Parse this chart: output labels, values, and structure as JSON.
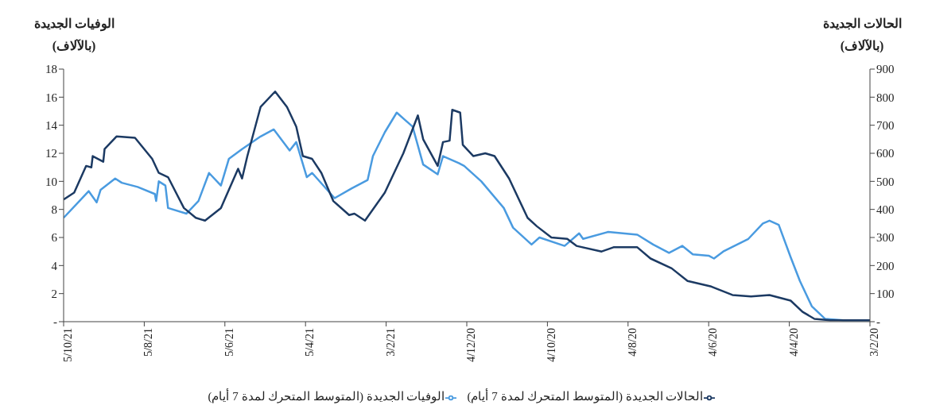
{
  "chart_data": {
    "type": "line",
    "ylabel": "الوفيات الجديدة (بالآلاف)",
    "y2label": "الحالات الجديدة (بالآلاف)",
    "xlim": [
      "2021-10-05",
      "2020-02-03"
    ],
    "xticks": [
      {
        "value": "2021-10-05",
        "label": "5/10/21"
      },
      {
        "value": "2021-08-05",
        "label": "5/8/21"
      },
      {
        "value": "2021-06-05",
        "label": "5/6/21"
      },
      {
        "value": "2021-04-05",
        "label": "5/4/21"
      },
      {
        "value": "2021-02-03",
        "label": "3/2/21"
      },
      {
        "value": "2020-12-04",
        "label": "4/12/20"
      },
      {
        "value": "2020-10-04",
        "label": "4/10/20"
      },
      {
        "value": "2020-08-04",
        "label": "4/8/20"
      },
      {
        "value": "2020-06-04",
        "label": "4/6/20"
      },
      {
        "value": "2020-04-04",
        "label": "4/4/20"
      },
      {
        "value": "2020-02-03",
        "label": "3/2/20"
      }
    ],
    "ylim": [
      0,
      18
    ],
    "yticks": [
      {
        "value": 0,
        "label": "-"
      },
      2,
      4,
      6,
      8,
      10,
      12,
      14,
      16,
      18
    ],
    "y2lim": [
      0,
      900
    ],
    "y2ticks": [
      {
        "value": 0,
        "label": "-"
      },
      100,
      200,
      300,
      400,
      500,
      600,
      700,
      800,
      900
    ],
    "grid": false,
    "legend": "bottom",
    "marker": "none",
    "line_style": "solid",
    "series": [
      {
        "name": "الوفيات الجديدة (المتوسط المتحرك لمدة 7 أيام)",
        "color": "#4a9be0",
        "x": [
          "2021-10-05",
          "2021-09-16",
          "2021-09-10",
          "2021-09-07",
          "2021-08-27",
          "2021-08-22",
          "2021-08-10",
          "2021-07-28",
          "2021-07-27",
          "2021-07-25",
          "2021-07-20",
          "2021-07-18",
          "2021-07-04",
          "2021-06-25",
          "2021-06-17",
          "2021-06-08",
          "2021-06-02",
          "2021-05-23",
          "2021-05-09",
          "2021-04-29",
          "2021-04-17",
          "2021-04-12",
          "2021-04-04",
          "2021-03-31",
          "2021-03-14",
          "2021-03-01",
          "2021-02-17",
          "2021-02-13",
          "2021-02-04",
          "2021-01-26",
          "2021-01-14",
          "2021-01-06",
          "2020-12-26",
          "2020-12-22",
          "2020-12-10",
          "2020-12-06",
          "2020-11-23",
          "2020-11-06",
          "2020-10-30",
          "2020-10-16",
          "2020-10-10",
          "2020-09-21",
          "2020-09-10",
          "2020-09-07",
          "2020-08-19",
          "2020-08-08",
          "2020-07-28",
          "2020-07-16",
          "2020-07-04",
          "2020-06-24",
          "2020-06-16",
          "2020-06-04",
          "2020-05-31",
          "2020-05-24",
          "2020-05-05",
          "2020-04-24",
          "2020-04-19",
          "2020-04-12",
          "2020-04-03",
          "2020-03-27",
          "2020-03-18",
          "2020-03-08",
          "2020-02-23",
          "2020-02-03"
        ],
        "values": [
          7.4,
          9.3,
          8.5,
          9.4,
          10.2,
          9.9,
          9.6,
          9.1,
          8.6,
          10.0,
          9.7,
          8.1,
          7.7,
          8.6,
          10.6,
          9.7,
          11.6,
          12.3,
          13.2,
          13.7,
          12.2,
          12.8,
          10.3,
          10.6,
          8.8,
          9.5,
          10.1,
          11.8,
          13.5,
          14.9,
          13.9,
          11.2,
          10.5,
          11.8,
          11.3,
          11.1,
          10.0,
          8.1,
          6.7,
          5.5,
          6.0,
          5.4,
          6.3,
          5.9,
          6.4,
          6.3,
          6.2,
          5.5,
          4.9,
          5.4,
          4.8,
          4.7,
          4.5,
          5.0,
          5.9,
          7.0,
          7.2,
          6.9,
          4.6,
          2.9,
          1.1,
          0.2,
          0.1,
          0.1
        ]
      },
      {
        "name": "الحالات الجديدة (المتوسط المتحرك لمدة 7 أيام)",
        "color": "#1c3a63",
        "axis": "y2",
        "x": [
          "2021-10-05",
          "2021-09-27",
          "2021-09-18",
          "2021-09-14",
          "2021-09-13",
          "2021-09-05",
          "2021-09-04",
          "2021-08-26",
          "2021-08-12",
          "2021-07-30",
          "2021-07-25",
          "2021-07-18",
          "2021-07-06",
          "2021-06-27",
          "2021-06-20",
          "2021-06-08",
          "2021-05-26",
          "2021-05-23",
          "2021-05-19",
          "2021-05-09",
          "2021-04-28",
          "2021-04-19",
          "2021-04-12",
          "2021-04-07",
          "2021-03-31",
          "2021-03-24",
          "2021-03-15",
          "2021-03-03",
          "2021-02-27",
          "2021-02-19",
          "2021-02-04",
          "2021-01-21",
          "2021-01-10",
          "2021-01-06",
          "2020-12-26",
          "2020-12-22",
          "2020-12-17",
          "2020-12-15",
          "2020-12-09",
          "2020-12-07",
          "2020-11-29",
          "2020-11-20",
          "2020-11-13",
          "2020-11-02",
          "2020-10-19",
          "2020-10-12",
          "2020-10-01",
          "2020-09-19",
          "2020-09-12",
          "2020-08-24",
          "2020-08-15",
          "2020-07-28",
          "2020-07-18",
          "2020-07-02",
          "2020-06-20",
          "2020-06-02",
          "2020-05-17",
          "2020-05-03",
          "2020-04-19",
          "2020-04-07",
          "2020-04-03",
          "2020-03-25",
          "2020-03-16",
          "2020-03-04",
          "2020-02-03"
        ],
        "values": [
          435,
          460,
          555,
          550,
          590,
          570,
          615,
          660,
          655,
          580,
          530,
          515,
          405,
          370,
          360,
          405,
          545,
          510,
          590,
          765,
          820,
          765,
          695,
          590,
          580,
          530,
          430,
          380,
          385,
          360,
          460,
          600,
          735,
          650,
          555,
          640,
          645,
          755,
          745,
          630,
          590,
          600,
          590,
          510,
          370,
          340,
          300,
          295,
          270,
          250,
          265,
          265,
          225,
          190,
          145,
          125,
          95,
          90,
          95,
          80,
          75,
          35,
          10,
          5,
          5
        ]
      }
    ]
  }
}
